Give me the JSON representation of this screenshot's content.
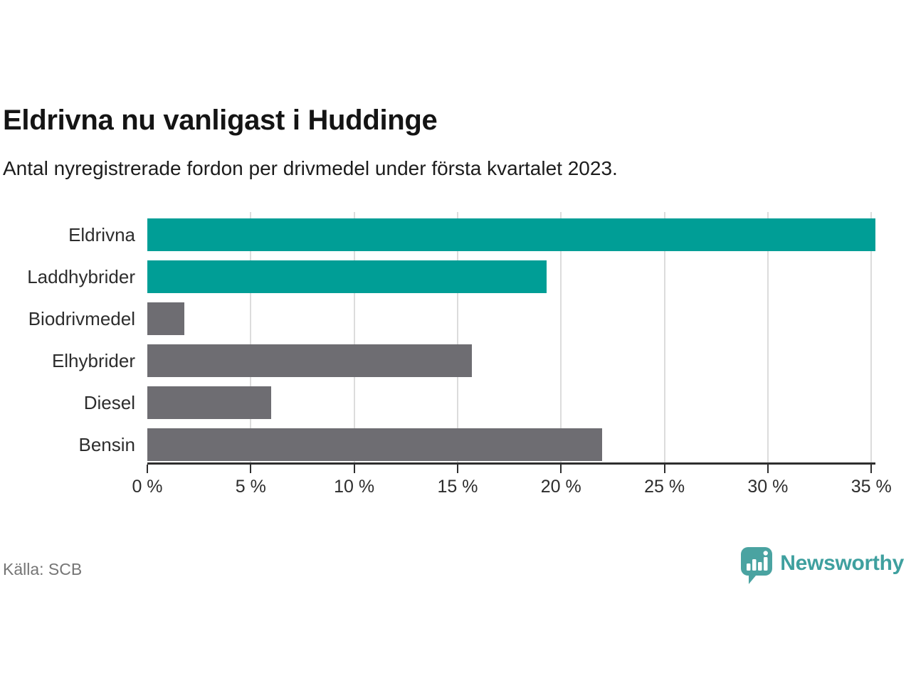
{
  "header": {
    "title": "Eldrivna nu vanligast i Huddinge",
    "subtitle": "Antal nyregistrerade fordon per drivmedel under första kvartalet 2023."
  },
  "chart_data": {
    "type": "bar",
    "orientation": "horizontal",
    "title": "Eldrivna nu vanligast i Huddinge",
    "subtitle": "Antal nyregistrerade fordon per drivmedel under första kvartalet 2023.",
    "categories": [
      "Eldrivna",
      "Laddhybrider",
      "Biodrivmedel",
      "Elhybrider",
      "Diesel",
      "Bensin"
    ],
    "values": [
      35.2,
      19.3,
      1.8,
      15.7,
      6.0,
      22.0
    ],
    "unit": "%",
    "bar_colors": [
      "#009e96",
      "#009e96",
      "#6e6d72",
      "#6e6d72",
      "#6e6d72",
      "#6e6d72"
    ],
    "highlight_color": "#009e96",
    "default_color": "#6e6d72",
    "xlabel": "",
    "ylabel": "",
    "xlim": [
      0,
      35.2
    ],
    "x_ticks": [
      0,
      5,
      10,
      15,
      20,
      25,
      30,
      35
    ],
    "x_tick_labels": [
      "0 %",
      "5 %",
      "10 %",
      "15 %",
      "20 %",
      "25 %",
      "30 %",
      "35 %"
    ],
    "grid": "vertical",
    "gridline_color": "#dcdcdc",
    "axis_color": "#2e2e2e",
    "legend": "none"
  },
  "footer": {
    "source": "Källa: SCB",
    "brand": "Newsworthy",
    "brand_color": "#3fa09f"
  }
}
